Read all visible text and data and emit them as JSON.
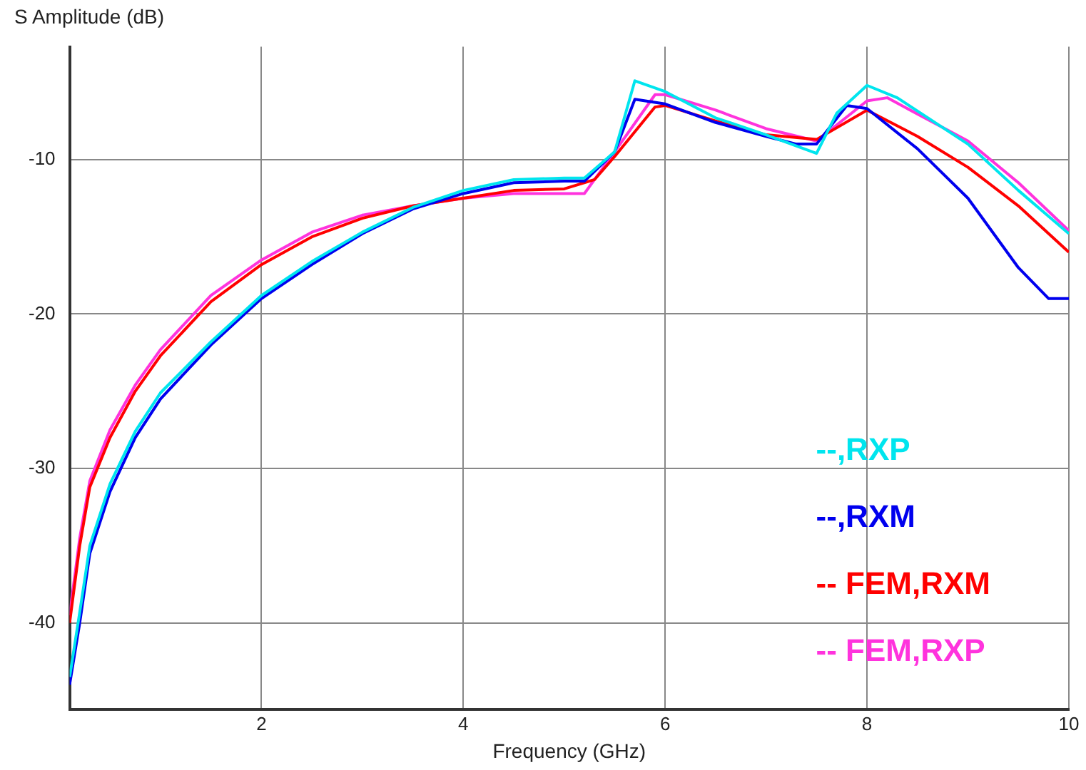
{
  "chart_data": {
    "type": "line",
    "ylabel": "S Amplitude (dB)",
    "xlabel": "Frequency (GHz)",
    "xlim": [
      0.1,
      10
    ],
    "xticks": [
      2,
      4,
      6,
      8,
      10
    ],
    "ylim": [
      -45.6,
      -2.7
    ],
    "yticks": [
      -10,
      -20,
      -30,
      -40
    ],
    "grid": true,
    "legend": "bottom right",
    "marker": "none",
    "line_style": "solid",
    "series": [
      {
        "name": "--,RXP",
        "color": "#00e5ee",
        "x": [
          0.1,
          0.2,
          0.3,
          0.5,
          0.75,
          1,
          1.5,
          2,
          2.5,
          3,
          3.5,
          4,
          4.5,
          5,
          5.2,
          5.5,
          5.7,
          6,
          6.5,
          7,
          7.5,
          7.7,
          8,
          8.3,
          9,
          9.5,
          10
        ],
        "values": [
          -43.5,
          -39.3,
          -35,
          -31,
          -27.6,
          -25.1,
          -21.8,
          -18.8,
          -16.6,
          -14.7,
          -13.1,
          -12,
          -11.3,
          -11.2,
          -11.2,
          -9.5,
          -4.9,
          -5.6,
          -7.3,
          -8.4,
          -9.6,
          -7,
          -5.2,
          -6,
          -9,
          -12,
          -14.8
        ]
      },
      {
        "name": "--,RXM",
        "color": "#0000ee",
        "x": [
          0.1,
          0.2,
          0.3,
          0.5,
          0.75,
          1,
          1.5,
          2,
          2.5,
          3,
          3.5,
          4,
          4.5,
          5,
          5.2,
          5.5,
          5.7,
          6,
          6.5,
          7,
          7.3,
          7.5,
          7.8,
          8,
          8.5,
          9,
          9.5,
          9.8,
          10
        ],
        "values": [
          -44,
          -40,
          -35.5,
          -31.5,
          -28,
          -25.5,
          -22,
          -19,
          -16.8,
          -14.8,
          -13.2,
          -12.2,
          -11.5,
          -11.4,
          -11.4,
          -9.5,
          -6.1,
          -6.4,
          -7.6,
          -8.5,
          -9,
          -9,
          -6.5,
          -6.7,
          -9.3,
          -12.5,
          -17,
          -19,
          -19
        ]
      },
      {
        "name": "-- FEM,RXM",
        "color": "#ff0000",
        "x": [
          0.1,
          0.2,
          0.3,
          0.5,
          0.75,
          1,
          1.5,
          2,
          2.5,
          3,
          3.5,
          4,
          4.5,
          5,
          5.3,
          5.5,
          5.9,
          6,
          6.5,
          7,
          7.5,
          8,
          8.5,
          9,
          9.5,
          10
        ],
        "values": [
          -40,
          -35,
          -31.2,
          -28,
          -25,
          -22.7,
          -19.2,
          -16.8,
          -15,
          -13.8,
          -13,
          -12.5,
          -12,
          -11.9,
          -11.3,
          -9.8,
          -6.6,
          -6.5,
          -7.5,
          -8.4,
          -8.7,
          -6.8,
          -8.5,
          -10.5,
          -13,
          -16
        ]
      },
      {
        "name": "-- FEM,RXP",
        "color": "#ff33dd",
        "x": [
          0.1,
          0.2,
          0.3,
          0.5,
          0.75,
          1,
          1.5,
          2,
          2.5,
          3,
          3.5,
          4,
          4.5,
          5,
          5.2,
          5.5,
          5.9,
          6,
          6.5,
          7,
          7.5,
          8,
          8.2,
          9,
          9.5,
          10
        ],
        "values": [
          -39.5,
          -34.5,
          -30.8,
          -27.5,
          -24.6,
          -22.3,
          -18.8,
          -16.5,
          -14.7,
          -13.6,
          -13,
          -12.5,
          -12.2,
          -12.2,
          -12.2,
          -9.5,
          -5.8,
          -5.8,
          -6.8,
          -8,
          -8.8,
          -6.2,
          -6,
          -8.8,
          -11.5,
          -14.6
        ]
      }
    ]
  }
}
